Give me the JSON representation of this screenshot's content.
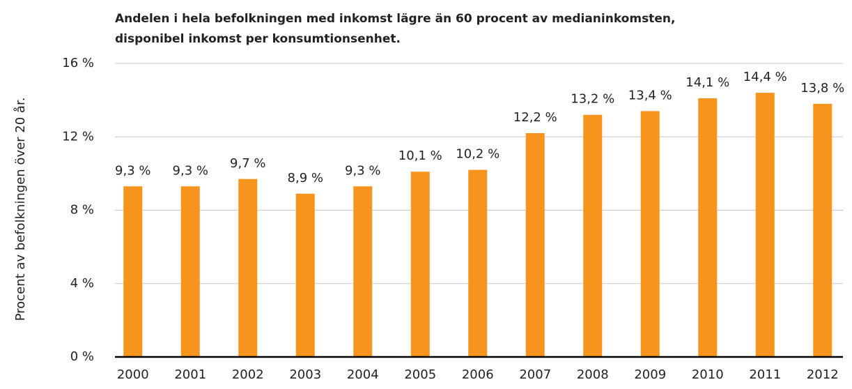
{
  "chart_data": {
    "type": "bar",
    "title": [
      "Andelen i hela befolkningen med inkomst lägre än 60 procent av medianinkomsten,",
      "disponibel inkomst per konsumtionsenhet."
    ],
    "y_label": "Procent av befolkningen över 20 år.",
    "categories": [
      "2000",
      "2001",
      "2002",
      "2003",
      "2004",
      "2005",
      "2006",
      "2007",
      "2008",
      "2009",
      "2010",
      "2011",
      "2012"
    ],
    "values": [
      9.3,
      9.3,
      9.7,
      8.9,
      9.3,
      10.1,
      10.2,
      12.2,
      13.2,
      13.4,
      14.1,
      14.4,
      13.8
    ],
    "value_labels": [
      "9,3 %",
      "9,3 %",
      "9,7 %",
      "8,9 %",
      "9,3 %",
      "10,1 %",
      "10,2 %",
      "12,2 %",
      "13,2 %",
      "13,4 %",
      "14,1 %",
      "14,4 %",
      "13,8 %"
    ],
    "color": "#f7941d",
    "ylim": [
      0,
      16
    ],
    "yticks": [
      {
        "value": 0,
        "label": "0 %"
      },
      {
        "value": 4,
        "label": "4 %"
      },
      {
        "value": 8,
        "label": "8 %"
      },
      {
        "value": 12,
        "label": "12 %"
      },
      {
        "value": 16,
        "label": "16 %"
      }
    ],
    "grid": true
  }
}
